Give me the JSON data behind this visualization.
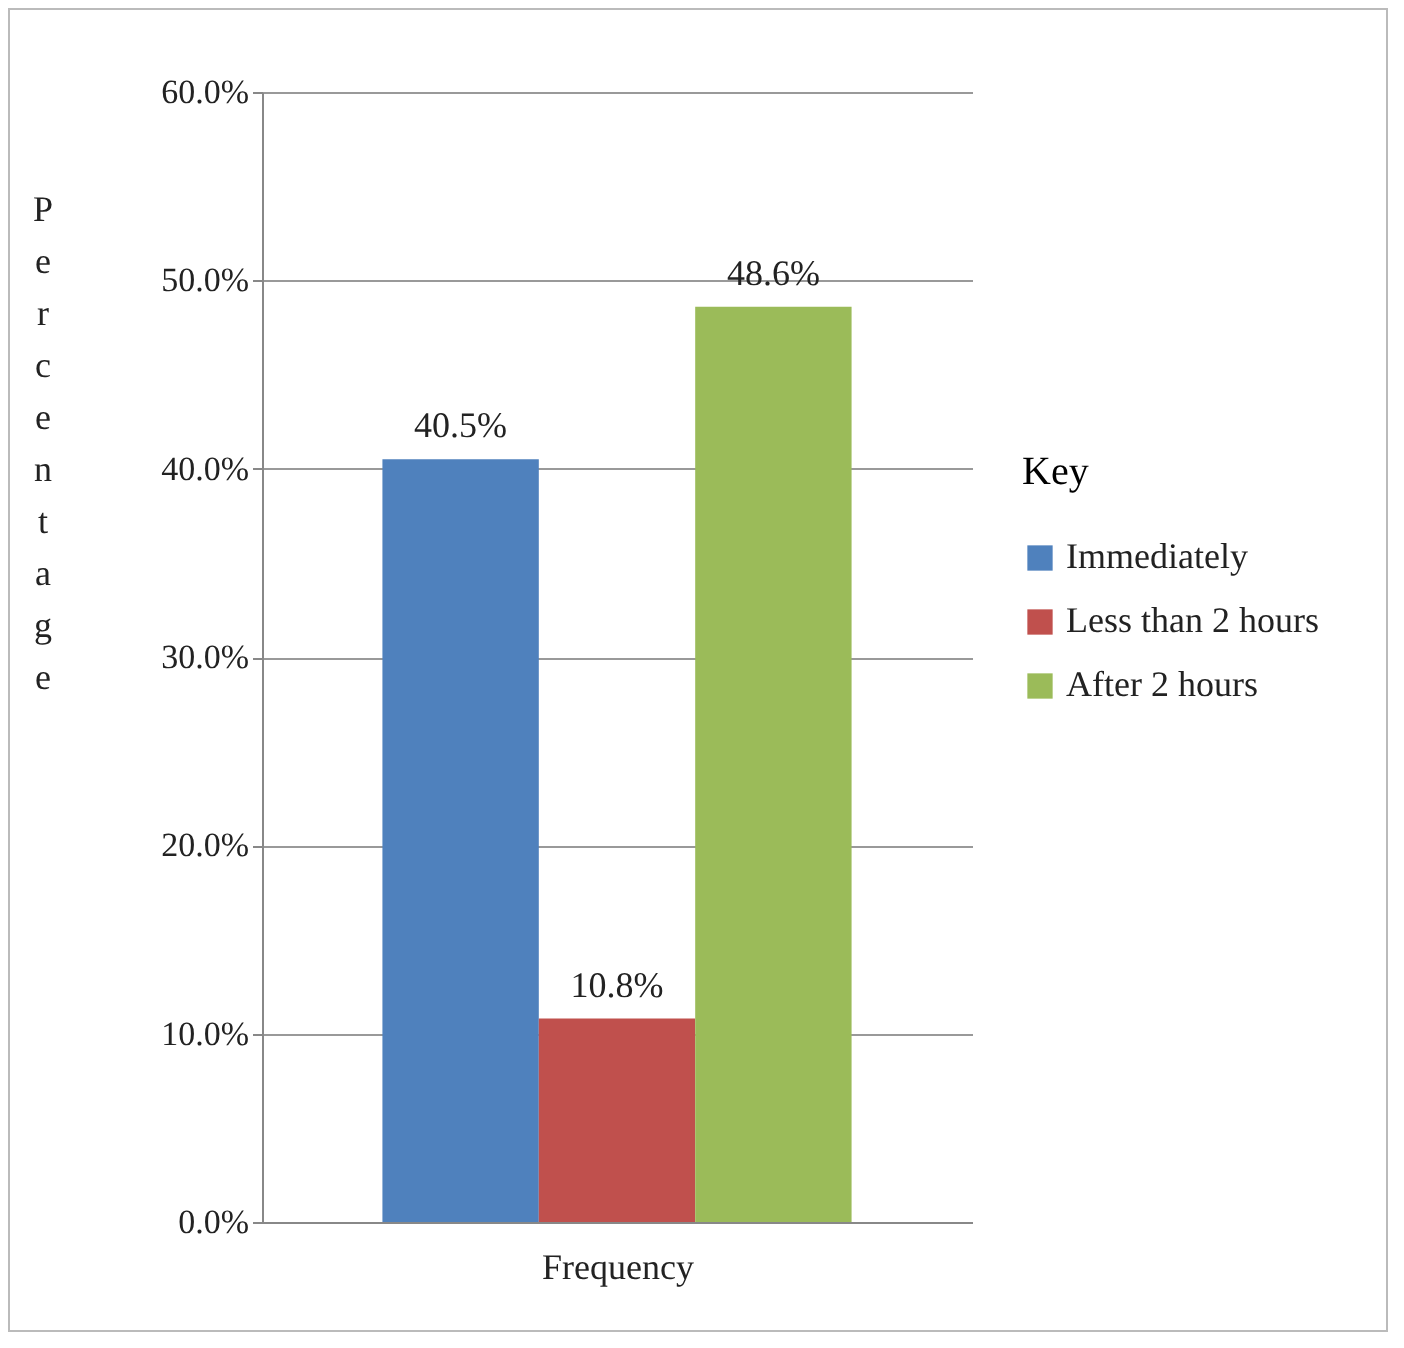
{
  "chart_data": {
    "type": "bar",
    "xlabel": "Frequency",
    "ylabel": "Percentage",
    "legend_title": "Key",
    "categories": [
      null,
      null,
      null
    ],
    "series": [
      {
        "name": "Immediately",
        "color": "#4f81bd",
        "values": [
          40.5,
          null,
          null
        ],
        "value_labels": [
          "40.5%",
          null,
          null
        ]
      },
      {
        "name": "Less than 2 hours",
        "color": "#c0504d",
        "values": [
          null,
          10.8,
          null
        ],
        "value_labels": [
          null,
          "10.8%",
          null
        ]
      },
      {
        "name": "After 2 hours",
        "color": "#9bbb59",
        "values": [
          null,
          null,
          48.6
        ],
        "value_labels": [
          null,
          null,
          "48.6%"
        ]
      }
    ],
    "ylim": [
      0,
      60
    ],
    "yticks": [
      {
        "value": 0,
        "label": "0.0%"
      },
      {
        "value": 10,
        "label": "10.0%"
      },
      {
        "value": 20,
        "label": "20.0%"
      },
      {
        "value": 30,
        "label": "30.0%"
      },
      {
        "value": 40,
        "label": "40.0%"
      },
      {
        "value": 50,
        "label": "50.0%"
      },
      {
        "value": 60,
        "label": "60.0%"
      }
    ],
    "grid": "y",
    "legend": "right",
    "tick_labels": "y"
  }
}
